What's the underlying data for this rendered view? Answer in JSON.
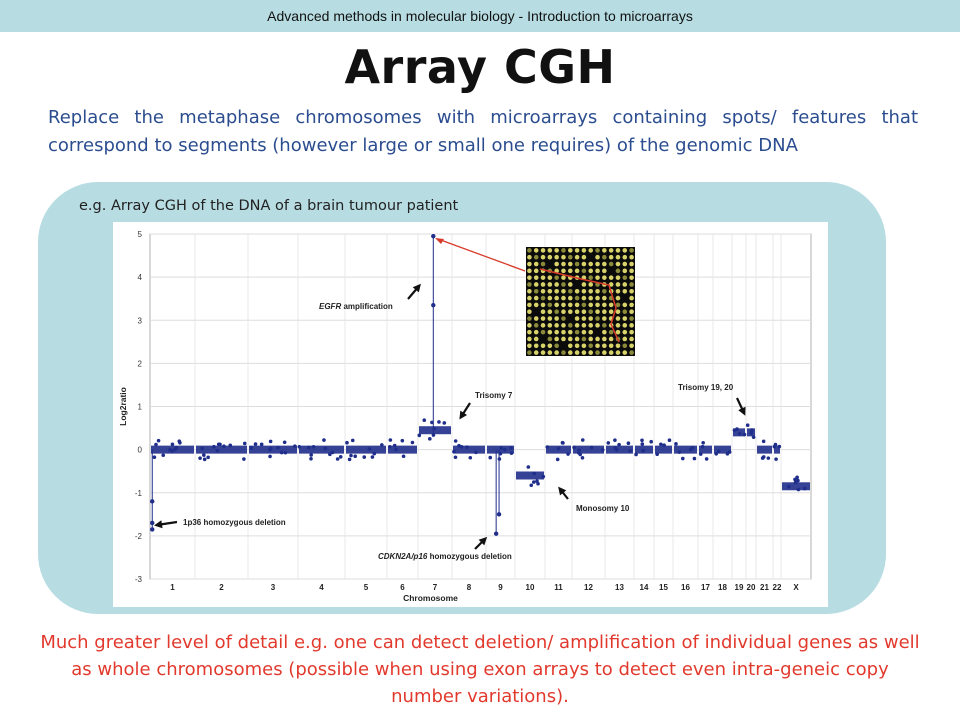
{
  "header": {
    "text": "Advanced methods in molecular biology - Introduction to microarrays"
  },
  "title": "Array CGH",
  "intro": "Replace the metaphase chromosomes with microarrays containing spots/ features that correspond to segments (however large or small one requires) of the genomic DNA",
  "figure": {
    "caption": "e.g. Array CGH of the DNA of a brain tumour patient"
  },
  "footer": "Much greater level of detail e.g. one can detect deletion/ amplification of individual genes as well as whole chromosomes (possible when using exon arrays to detect even intra-geneic copy number variations).",
  "colors": {
    "header_band": "#b7dde3",
    "intro_text": "#2b4d8f",
    "footer_text": "#e2392d",
    "points": "#1f2e8a",
    "arrow_red": "#d83a2a"
  },
  "chart_data": {
    "type": "scatter",
    "xlabel": "Chromosome",
    "ylabel": "Log2ratio",
    "ylim": [
      -3,
      5
    ],
    "yticks": [
      5,
      4,
      3,
      2,
      1,
      0,
      -1,
      -2,
      -3
    ],
    "categories": [
      "1",
      "2",
      "3",
      "4",
      "5",
      "6",
      "7",
      "8",
      "9",
      "10",
      "11",
      "12",
      "13",
      "14",
      "15",
      "16",
      "17",
      "18",
      "19",
      "20",
      "21",
      "22",
      "X"
    ],
    "grid": true,
    "segments": [
      {
        "chromosome": "1",
        "log2ratio": 0
      },
      {
        "chromosome": "2",
        "log2ratio": 0
      },
      {
        "chromosome": "3",
        "log2ratio": 0
      },
      {
        "chromosome": "4",
        "log2ratio": 0
      },
      {
        "chromosome": "5",
        "log2ratio": 0
      },
      {
        "chromosome": "6",
        "log2ratio": 0
      },
      {
        "chromosome": "7",
        "log2ratio": 0.45
      },
      {
        "chromosome": "8",
        "log2ratio": 0
      },
      {
        "chromosome": "9",
        "log2ratio": 0
      },
      {
        "chromosome": "10",
        "log2ratio": -0.6
      },
      {
        "chromosome": "11",
        "log2ratio": 0
      },
      {
        "chromosome": "12",
        "log2ratio": 0
      },
      {
        "chromosome": "13",
        "log2ratio": 0
      },
      {
        "chromosome": "14",
        "log2ratio": 0
      },
      {
        "chromosome": "15",
        "log2ratio": 0
      },
      {
        "chromosome": "16",
        "log2ratio": 0
      },
      {
        "chromosome": "17",
        "log2ratio": 0
      },
      {
        "chromosome": "18",
        "log2ratio": 0
      },
      {
        "chromosome": "19",
        "log2ratio": 0.4
      },
      {
        "chromosome": "20",
        "log2ratio": 0.4
      },
      {
        "chromosome": "21",
        "log2ratio": 0
      },
      {
        "chromosome": "22",
        "log2ratio": 0
      },
      {
        "chromosome": "X",
        "log2ratio": -0.85
      }
    ],
    "outliers": [
      {
        "chromosome": "1",
        "log2ratio": -1.2
      },
      {
        "chromosome": "1",
        "log2ratio": -1.7
      },
      {
        "chromosome": "1",
        "log2ratio": -1.85
      },
      {
        "chromosome": "7",
        "log2ratio": 4.95
      },
      {
        "chromosome": "7",
        "log2ratio": 3.35
      },
      {
        "chromosome": "9",
        "log2ratio": -1.5
      },
      {
        "chromosome": "9",
        "log2ratio": -1.95
      }
    ],
    "annotations": [
      {
        "label": "EGFR amplification",
        "chromosome": "7",
        "log2ratio": 4.95
      },
      {
        "label": "Trisomy 7",
        "chromosome": "7",
        "log2ratio": 0.6
      },
      {
        "label": "Trisomy 19, 20",
        "chromosome": "19",
        "log2ratio": 0.6
      },
      {
        "label": "1p36 homozygous deletion",
        "chromosome": "1",
        "log2ratio": -1.75
      },
      {
        "label": "CDKN2A/p16 homozygous deletion",
        "chromosome": "9",
        "log2ratio": -2.2
      },
      {
        "label": "Monosomy 10",
        "chromosome": "10",
        "log2ratio": -0.85
      }
    ]
  }
}
